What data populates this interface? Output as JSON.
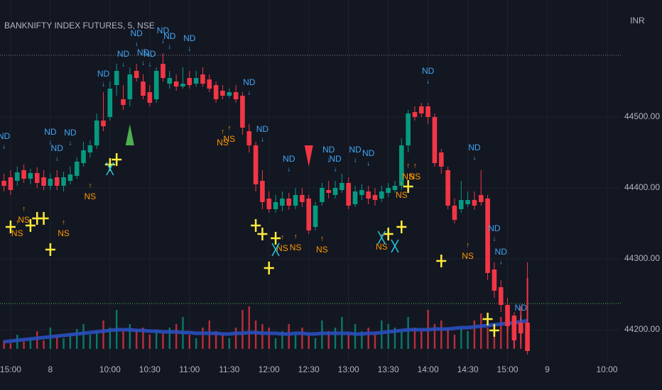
{
  "chart_data": {
    "type": "candlestick",
    "title": "BANKNIFTY INDEX FUTURES, 5, NSE",
    "currency": "INR",
    "x": [
      -1,
      0,
      1,
      2,
      3,
      4,
      5,
      6,
      7,
      8,
      9,
      10,
      11,
      12,
      13,
      14,
      15,
      16,
      17,
      18,
      19,
      20,
      21,
      22,
      23,
      24,
      25,
      26,
      27,
      28,
      29,
      30,
      31,
      32,
      33,
      34,
      35,
      36,
      37,
      38,
      39,
      40,
      41,
      42,
      43,
      44,
      45,
      46,
      47,
      48,
      49,
      50,
      51,
      52,
      53,
      54,
      55,
      56,
      57,
      58,
      59,
      60,
      61,
      62,
      63,
      64,
      65,
      66,
      67,
      68,
      69,
      70,
      71,
      72,
      73,
      74,
      75,
      76,
      77,
      78
    ],
    "open": [
      44410,
      44415,
      44410,
      44425,
      44413,
      44421,
      44415,
      44403,
      44415,
      44403,
      44410,
      44417,
      44435,
      44450,
      44460,
      44495,
      44500,
      44545,
      44525,
      44525,
      44565,
      44550,
      44535,
      44525,
      44575,
      44547,
      44550,
      44543,
      44555,
      44547,
      44560,
      44553,
      44545,
      44537,
      44530,
      44535,
      44530,
      44480,
      44460,
      44410,
      44385,
      44370,
      44375,
      44385,
      44375,
      44390,
      44385,
      44345,
      44380,
      44397,
      44390,
      44397,
      44407,
      44377,
      44390,
      44395,
      44390,
      44385,
      44393,
      44397,
      44403,
      44460,
      44507,
      44515,
      44515,
      44500,
      44450,
      44425,
      44375,
      44370,
      44377,
      44383,
      44390,
      44385,
      44285,
      44260,
      44235,
      44220,
      44210,
      44210
    ],
    "high": [
      44420,
      44425,
      44430,
      44433,
      44427,
      44429,
      44425,
      44420,
      44425,
      44423,
      44430,
      44443,
      44465,
      44467,
      44505,
      44535,
      44550,
      44575,
      44545,
      44570,
      44575,
      44560,
      44545,
      44570,
      44590,
      44565,
      44560,
      44570,
      44565,
      44565,
      44570,
      44560,
      44550,
      44545,
      44540,
      44545,
      44535,
      44490,
      44465,
      44425,
      44395,
      44390,
      44395,
      44393,
      44400,
      44400,
      44390,
      44380,
      44407,
      44410,
      44410,
      44420,
      44415,
      44403,
      44405,
      44403,
      44400,
      44403,
      44407,
      44410,
      44470,
      44510,
      44515,
      44520,
      44520,
      44505,
      44455,
      44430,
      44385,
      44410,
      44395,
      44395,
      44425,
      44390,
      44295,
      44270,
      44245,
      44225,
      44220,
      44295
    ],
    "low": [
      44395,
      44390,
      44403,
      44407,
      44405,
      44400,
      44397,
      44397,
      44397,
      44395,
      44405,
      44413,
      44430,
      44443,
      44455,
      44480,
      44495,
      44530,
      44510,
      44515,
      44550,
      44525,
      44515,
      44520,
      44550,
      44540,
      44537,
      44540,
      44540,
      44543,
      44543,
      44535,
      44520,
      44525,
      44527,
      44520,
      44475,
      44450,
      44395,
      44370,
      44365,
      44365,
      44367,
      44369,
      44370,
      44373,
      44335,
      44340,
      44375,
      44385,
      44385,
      44393,
      44370,
      44373,
      44383,
      44377,
      44375,
      44380,
      44387,
      44393,
      44397,
      44450,
      44495,
      44500,
      44490,
      44430,
      44420,
      44370,
      44350,
      44365,
      44373,
      44369,
      44375,
      44270,
      44245,
      44225,
      44195,
      44175,
      44180,
      44165
    ],
    "close": [
      44403,
      44397,
      44422,
      44413,
      44421,
      44407,
      44403,
      44413,
      44403,
      44415,
      44419,
      44437,
      44453,
      44460,
      44495,
      44487,
      44540,
      44565,
      44517,
      44560,
      44555,
      44530,
      44520,
      44565,
      44555,
      44555,
      44543,
      44547,
      44545,
      44555,
      44547,
      44540,
      44525,
      44530,
      44535,
      44525,
      44485,
      44460,
      44405,
      44380,
      44370,
      44380,
      44385,
      44375,
      44390,
      44380,
      44340,
      44375,
      44400,
      44393,
      44400,
      44407,
      44375,
      44395,
      44397,
      44385,
      44383,
      44395,
      44400,
      44403,
      44460,
      44505,
      44500,
      44505,
      44500,
      44435,
      44430,
      44375,
      44355,
      44383,
      44383,
      44375,
      44380,
      44280,
      44255,
      44235,
      44205,
      44185,
      44195,
      44170
    ],
    "up_color": "#089981",
    "down_color": "#f23645",
    "xlim": [
      -1.6,
      92.2
    ],
    "ylim": [
      44155,
      44665
    ],
    "xticks": [
      {
        "value": 0,
        "label": "15:00"
      },
      {
        "value": 6,
        "label": "8"
      },
      {
        "value": 15,
        "label": "10:00"
      },
      {
        "value": 21,
        "label": "10:30"
      },
      {
        "value": 27,
        "label": "11:00"
      },
      {
        "value": 33,
        "label": "11:30"
      },
      {
        "value": 39,
        "label": "12:00"
      },
      {
        "value": 45,
        "label": "12:30"
      },
      {
        "value": 51,
        "label": "13:00"
      },
      {
        "value": 57,
        "label": "13:30"
      },
      {
        "value": 63,
        "label": "14:00"
      },
      {
        "value": 69,
        "label": "14:30"
      },
      {
        "value": 75,
        "label": "15:00"
      },
      {
        "value": 81,
        "label": "9"
      },
      {
        "value": 90,
        "label": "10:00"
      }
    ],
    "yticks": [
      {
        "value": 44200,
        "label": "44200.00"
      },
      {
        "value": 44300,
        "label": "44300.00"
      },
      {
        "value": 44400,
        "label": "44400.00"
      },
      {
        "value": 44500,
        "label": "44500.00"
      }
    ],
    "grid": true,
    "volume": {
      "values": [
        12,
        8,
        20,
        10,
        15,
        25,
        12,
        30,
        18,
        15,
        22,
        28,
        35,
        20,
        25,
        40,
        30,
        55,
        25,
        35,
        28,
        30,
        20,
        25,
        22,
        30,
        35,
        45,
        20,
        15,
        30,
        40,
        25,
        20,
        15,
        30,
        55,
        60,
        40,
        35,
        30,
        15,
        25,
        35,
        20,
        30,
        20,
        15,
        40,
        25,
        30,
        45,
        20,
        35,
        25,
        30,
        20,
        40,
        35,
        30,
        25,
        45,
        30,
        25,
        55,
        35,
        40,
        30,
        20,
        30,
        25,
        40,
        50,
        30,
        35,
        45,
        55,
        35,
        60,
        100
      ],
      "ma": [
        10,
        11,
        12,
        13,
        14,
        15,
        16,
        17,
        18,
        19,
        20,
        21,
        22,
        23,
        24,
        25,
        26,
        27,
        27,
        27,
        26,
        26,
        25,
        25,
        24,
        24,
        24,
        23,
        23,
        22,
        22,
        22,
        22,
        21,
        21,
        22,
        22,
        23,
        23,
        22,
        22,
        22,
        21,
        21,
        22,
        22,
        21,
        21,
        22,
        22,
        22,
        22,
        22,
        21,
        21,
        22,
        22,
        23,
        24,
        25,
        26,
        27,
        27,
        27,
        27,
        28,
        28,
        28,
        29,
        30,
        30,
        31,
        32,
        33,
        34,
        35,
        36,
        37,
        38,
        40
      ],
      "ma_color": "#2a4fbf"
    },
    "reference_lines": [
      {
        "value": 44587,
        "color": "#787b86"
      },
      {
        "value": 44237,
        "color": "#4caf50"
      }
    ],
    "signals": {
      "nd": {
        "label": "ND",
        "arrow": "↓",
        "color": "#42a5f5",
        "x": [
          -1,
          6,
          7,
          9,
          14,
          17,
          19,
          20,
          21,
          23,
          24,
          27,
          36,
          38,
          42,
          48,
          49,
          52,
          54,
          63,
          70,
          73,
          74,
          77
        ],
        "y": [
          44472,
          44478,
          44455,
          44477,
          44560,
          44588,
          44617,
          44590,
          44588,
          44621,
          44613,
          44610,
          44548,
          44482,
          44440,
          44453,
          44440,
          44453,
          44448,
          44564,
          44456,
          44342,
          44309,
          44230
        ]
      },
      "ns": {
        "label": "NS",
        "arrow": "↑",
        "color": "#ff9800",
        "x": [
          1,
          2,
          8,
          12,
          32,
          33,
          41,
          43,
          47,
          56,
          59,
          60,
          61,
          69
        ],
        "y": [
          44335,
          44354,
          44335,
          44387,
          44463,
          44468,
          44314,
          44315,
          44312,
          44316,
          44389,
          44415,
          44415,
          44303
        ]
      },
      "crosses": {
        "color": "#ffeb3b",
        "x": [
          0,
          3,
          4,
          5,
          6,
          15,
          16,
          37,
          38,
          39,
          40,
          57,
          59,
          60,
          65,
          72,
          73
        ],
        "y": [
          44345,
          44347,
          44357,
          44357,
          44313,
          44433,
          44440,
          44347,
          44335,
          44287,
          44329,
          44335,
          44345,
          44402,
          44297,
          44215,
          44199
        ]
      },
      "x_marks": {
        "color": "#26c6da",
        "x": [
          15,
          40,
          56,
          58
        ],
        "y": [
          44427,
          44313,
          44330,
          44318
        ]
      },
      "up_triangles": {
        "color": "#4caf50",
        "x": [
          18
        ],
        "y": [
          44475
        ]
      },
      "down_triangles": {
        "color": "#f23645",
        "x": [
          45
        ],
        "y": [
          44445
        ]
      }
    }
  }
}
